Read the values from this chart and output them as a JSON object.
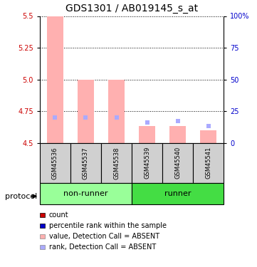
{
  "title": "GDS1301 / AB019145_s_at",
  "samples": [
    "GSM45536",
    "GSM45537",
    "GSM45538",
    "GSM45539",
    "GSM45540",
    "GSM45541"
  ],
  "ylim": [
    4.5,
    5.5
  ],
  "ylim_right": [
    0,
    100
  ],
  "yticks_left": [
    4.5,
    4.75,
    5.0,
    5.25,
    5.5
  ],
  "yticks_right": [
    0,
    25,
    50,
    75,
    100
  ],
  "bar_values": [
    5.5,
    5.0,
    5.0,
    4.63,
    4.63,
    4.6
  ],
  "bar_base": 4.5,
  "rank_values": [
    4.7,
    4.7,
    4.7,
    4.66,
    4.67,
    4.63
  ],
  "bar_color_absent": "#ffb0b0",
  "rank_color_absent": "#aaaaff",
  "group_colors_nonrunner": "#99ff99",
  "group_colors_runner": "#44dd44",
  "left_axis_color": "#cc0000",
  "right_axis_color": "#0000cc",
  "bar_width": 0.55,
  "legend_items": [
    {
      "label": "count",
      "color": "#cc0000"
    },
    {
      "label": "percentile rank within the sample",
      "color": "#0000cc"
    },
    {
      "label": "value, Detection Call = ABSENT",
      "color": "#ffb0b0"
    },
    {
      "label": "rank, Detection Call = ABSENT",
      "color": "#aaaaff"
    }
  ],
  "protocol_label": "protocol",
  "title_fontsize": 10,
  "axis_fontsize": 7,
  "sample_fontsize": 6,
  "group_fontsize": 8,
  "legend_fontsize": 7
}
